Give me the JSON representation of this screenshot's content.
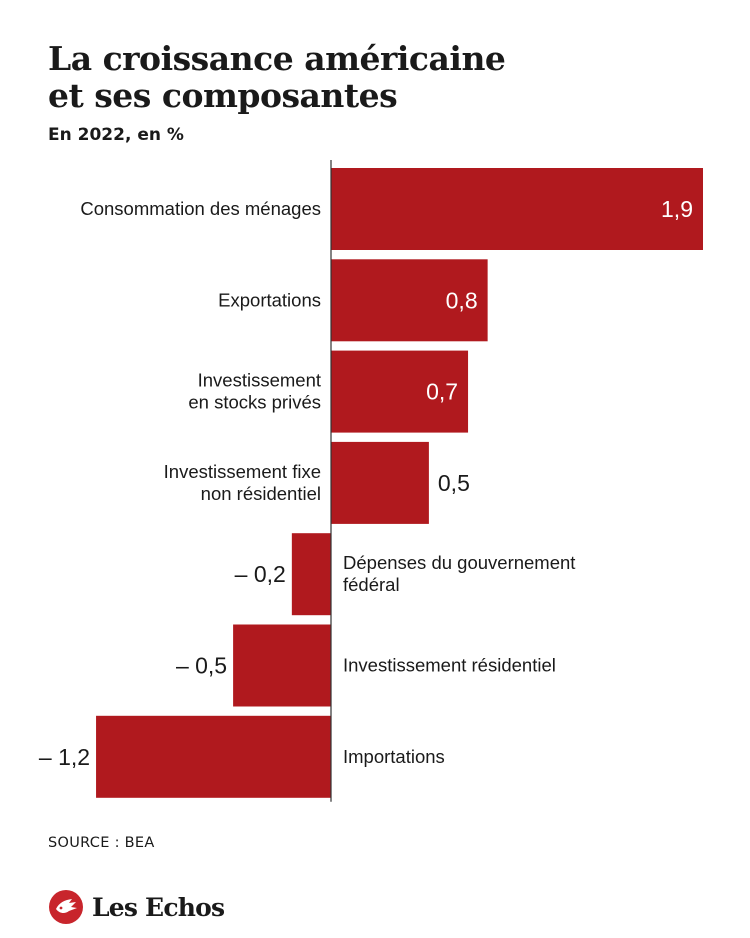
{
  "header": {
    "title": "La croissance américaine\net ses composantes",
    "subtitle": "En 2022, en %"
  },
  "chart_data": {
    "type": "bar",
    "orientation": "horizontal",
    "categories": [
      [
        "Consommation des ménages"
      ],
      [
        "Exportations"
      ],
      [
        "Investissement",
        "en stocks privés"
      ],
      [
        "Investissement fixe",
        "non résidentiel"
      ],
      [
        "Dépenses du gouvernement",
        "fédéral"
      ],
      [
        "Investissement résidentiel"
      ],
      [
        "Importations"
      ]
    ],
    "values": [
      1.9,
      0.8,
      0.7,
      0.5,
      -0.2,
      -0.5,
      -1.2
    ],
    "value_labels": [
      "1,9",
      "0,8",
      "0,7",
      "0,5",
      "– 0,2",
      "– 0,5",
      "– 1,2"
    ],
    "xlim": [
      -1.2,
      1.9
    ],
    "grid": false,
    "legend": "none",
    "bar_color": "#b0191e",
    "axis_color": "#333333"
  },
  "footer": {
    "source": "SOURCE : BEA",
    "brand": "Les Echos",
    "brand_color": "#c8252c"
  }
}
